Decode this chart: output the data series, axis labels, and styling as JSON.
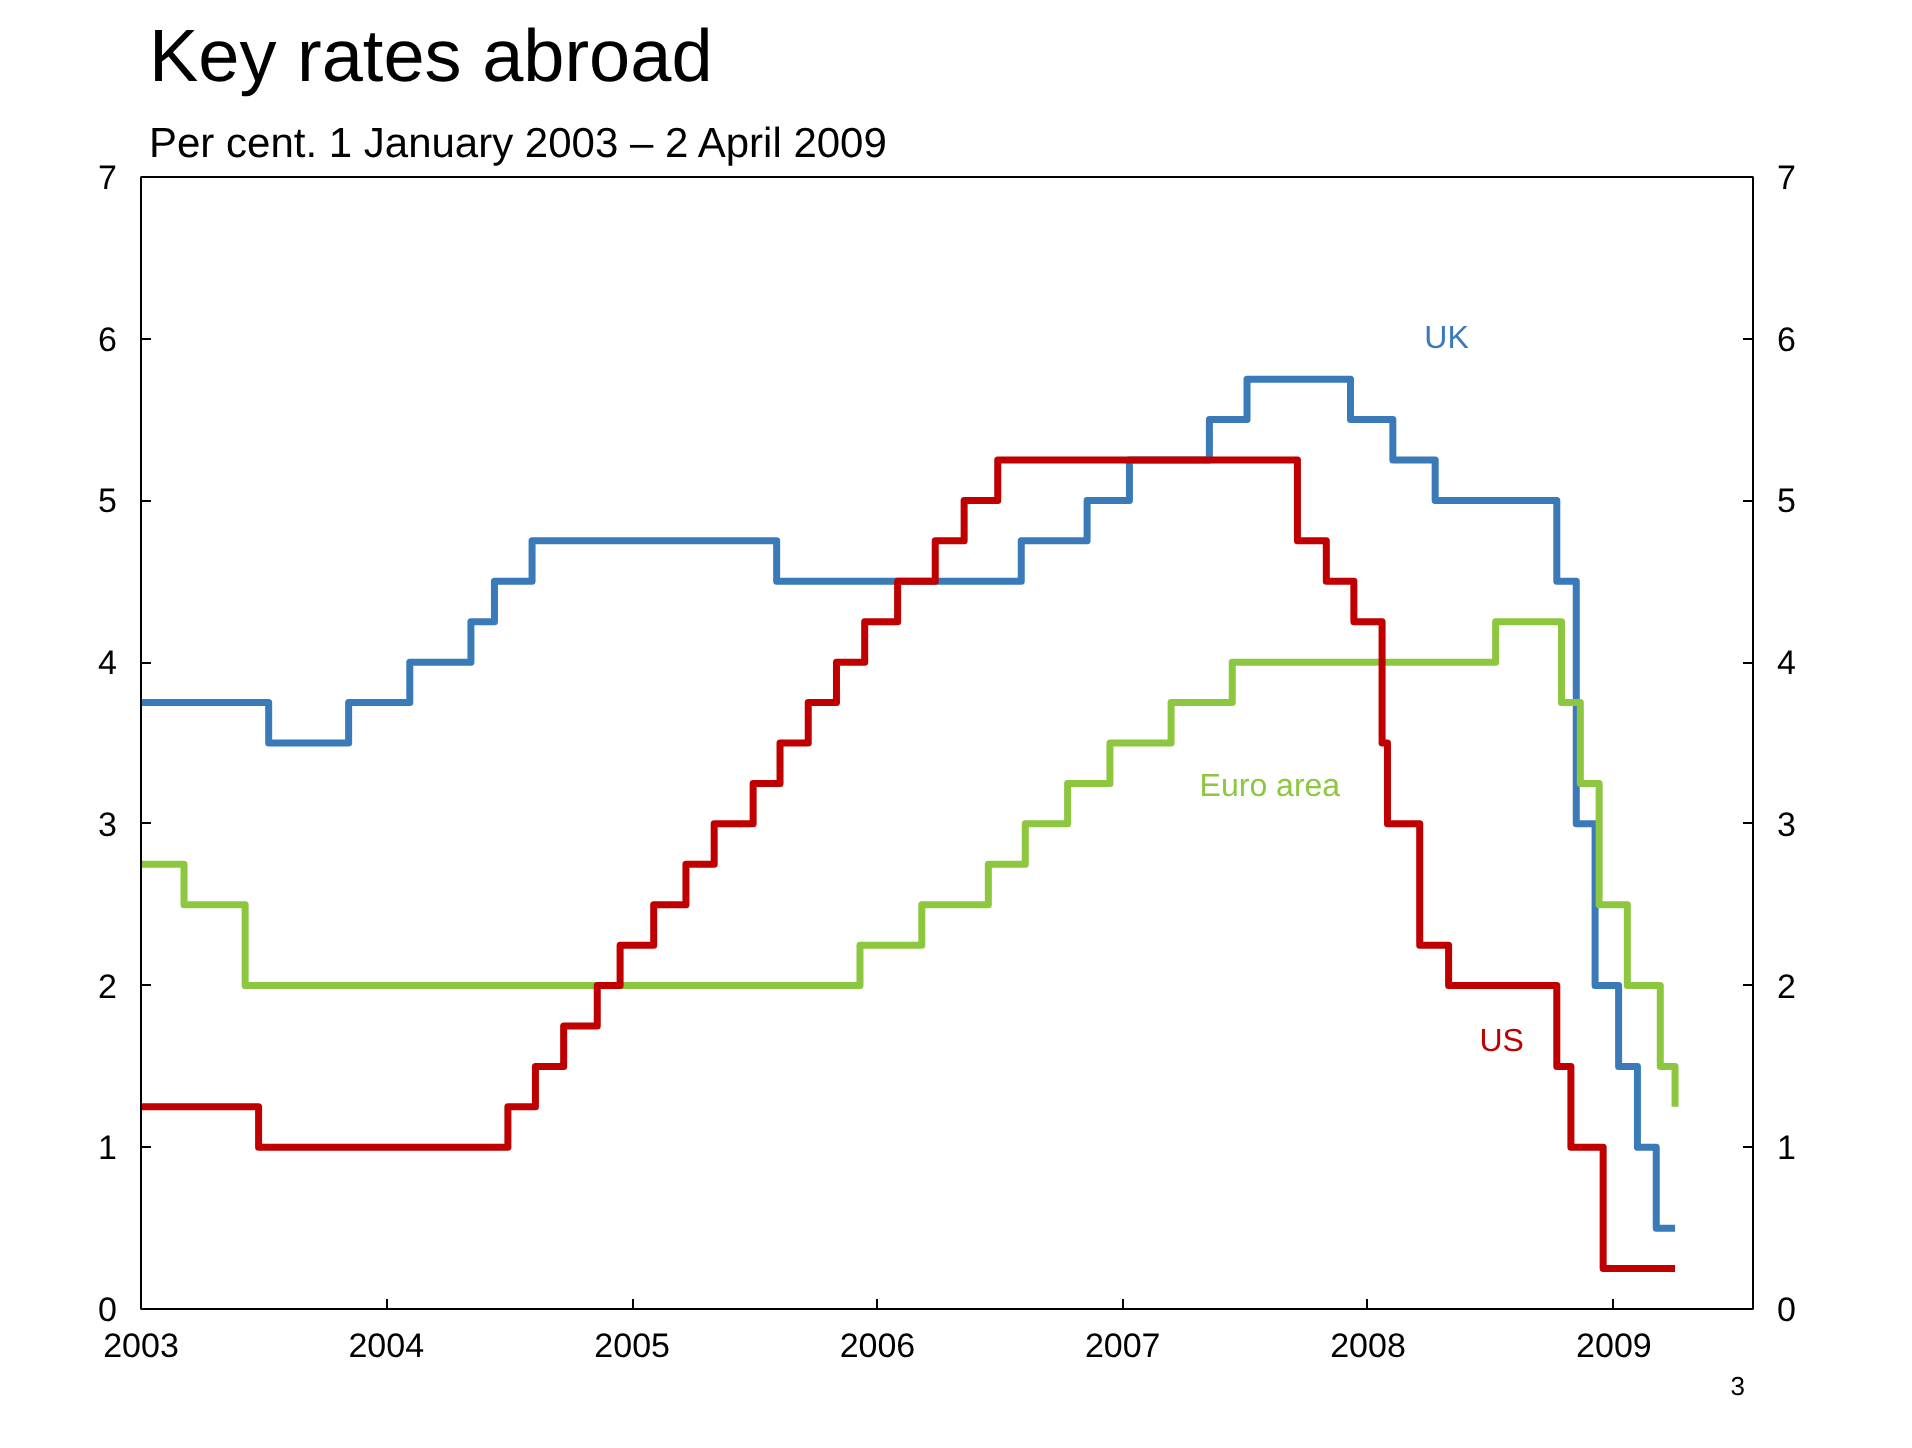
{
  "chart_data": {
    "type": "step",
    "title": "Key rates abroad",
    "subtitle": "Per cent. 1 January 2003 – 2 April 2009",
    "xlim": [
      "2003-01-01",
      "2009-07-27"
    ],
    "xticks": [
      "2003",
      "2004",
      "2005",
      "2006",
      "2007",
      "2008",
      "2009"
    ],
    "ylim": [
      0,
      7
    ],
    "yticks": [
      0,
      1,
      2,
      3,
      4,
      5,
      6,
      7
    ],
    "y2lim": [
      0,
      7
    ],
    "y2ticks": [
      0,
      1,
      2,
      3,
      4,
      5,
      6,
      7
    ],
    "grid": false,
    "line_style": "solid",
    "series": [
      {
        "name": "UK",
        "color": "#3a7ab8",
        "x": [
          "2003-01-01",
          "2003-07-10",
          "2003-11-06",
          "2004-02-05",
          "2004-05-06",
          "2004-06-10",
          "2004-08-05",
          "2005-08-04",
          "2006-08-03",
          "2006-11-09",
          "2007-01-11",
          "2007-05-10",
          "2007-07-05",
          "2007-12-06",
          "2008-02-07",
          "2008-04-10",
          "2008-10-08",
          "2008-11-06",
          "2008-12-04",
          "2009-01-08",
          "2009-02-05",
          "2009-03-05",
          "2009-04-02"
        ],
        "values": [
          3.75,
          3.5,
          3.75,
          4.0,
          4.25,
          4.5,
          4.75,
          4.5,
          4.75,
          5.0,
          5.25,
          5.5,
          5.75,
          5.5,
          5.25,
          5.0,
          4.5,
          3.0,
          2.0,
          1.5,
          1.0,
          0.5,
          0.5
        ]
      },
      {
        "name": "Euro area",
        "color": "#8dc63f",
        "x": [
          "2003-01-01",
          "2003-03-06",
          "2003-06-05",
          "2005-12-06",
          "2006-03-08",
          "2006-06-15",
          "2006-08-09",
          "2006-10-11",
          "2006-12-13",
          "2007-03-14",
          "2007-06-13",
          "2008-07-09",
          "2008-10-15",
          "2008-11-12",
          "2008-12-10",
          "2009-01-21",
          "2009-03-11",
          "2009-04-02"
        ],
        "values": [
          2.75,
          2.5,
          2.0,
          2.25,
          2.5,
          2.75,
          3.0,
          3.25,
          3.5,
          3.75,
          4.0,
          4.25,
          3.75,
          3.25,
          2.5,
          2.0,
          1.5,
          1.25
        ]
      },
      {
        "name": "US",
        "color": "#c00000",
        "x": [
          "2003-01-01",
          "2003-06-25",
          "2004-06-30",
          "2004-08-10",
          "2004-09-21",
          "2004-11-10",
          "2004-12-14",
          "2005-02-02",
          "2005-03-22",
          "2005-05-03",
          "2005-06-30",
          "2005-08-09",
          "2005-09-20",
          "2005-11-01",
          "2005-12-13",
          "2006-01-31",
          "2006-03-28",
          "2006-05-10",
          "2006-06-29",
          "2007-09-18",
          "2007-10-31",
          "2007-12-11",
          "2008-01-22",
          "2008-01-30",
          "2008-03-18",
          "2008-04-30",
          "2008-10-08",
          "2008-10-29",
          "2008-12-16",
          "2009-04-02"
        ],
        "values": [
          1.25,
          1.0,
          1.25,
          1.5,
          1.75,
          2.0,
          2.25,
          2.5,
          2.75,
          3.0,
          3.25,
          3.5,
          3.75,
          4.0,
          4.25,
          4.5,
          4.75,
          5.0,
          5.25,
          4.75,
          4.5,
          4.25,
          3.5,
          3.0,
          2.25,
          2.0,
          1.5,
          1.0,
          0.25,
          0.25
        ]
      }
    ],
    "annotations": [
      "3"
    ]
  }
}
